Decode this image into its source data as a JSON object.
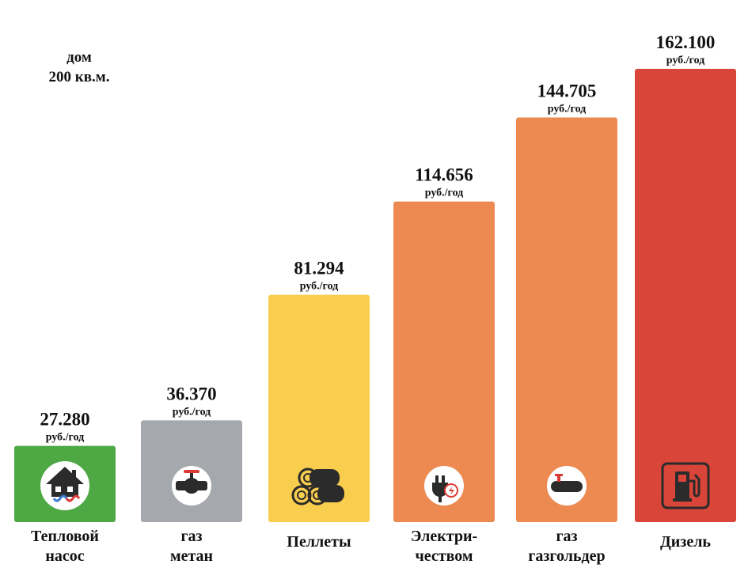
{
  "note": {
    "line1": "дом",
    "line2": "200 кв.м."
  },
  "chart_data": {
    "type": "bar",
    "title": "",
    "xlabel": "",
    "ylabel": "",
    "ylim": [
      0,
      170000
    ],
    "grid": false,
    "categories": [
      [
        "Тепловой",
        "насос"
      ],
      [
        "газ",
        "метан"
      ],
      [
        "Пеллеты"
      ],
      [
        "Электри-",
        "чеством"
      ],
      [
        "газ",
        "газгольдер"
      ],
      [
        "Дизель"
      ]
    ],
    "values": [
      27280,
      36370,
      81294,
      114656,
      144705,
      162100
    ],
    "value_labels": [
      "27.280",
      "36.370",
      "81.294",
      "114.656",
      "144.705",
      "162.100"
    ],
    "unit_label": "руб./год",
    "colors": [
      "#4ea944",
      "#a5a8ad",
      "#f9cd4e",
      "#ec8a52",
      "#ec8a52",
      "#d94539"
    ],
    "icons": [
      "house-heat-pump-icon",
      "gas-valve-icon",
      "wood-logs-icon",
      "electric-plug-icon",
      "gas-tank-icon",
      "fuel-pump-icon"
    ]
  }
}
